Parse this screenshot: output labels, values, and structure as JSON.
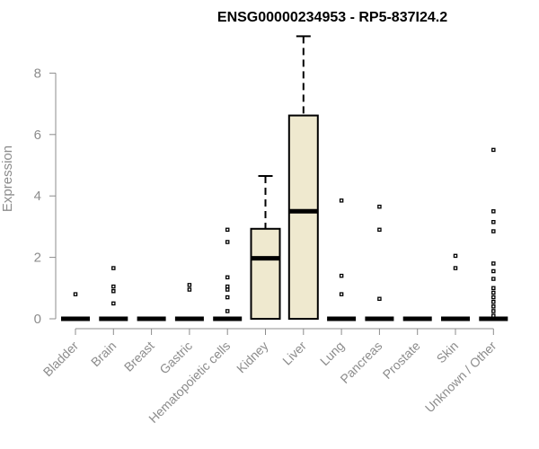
{
  "chart_data": {
    "type": "boxplot",
    "title": "ENSG00000234953 - RP5-837I24.2",
    "ylabel": "Expression",
    "xlabel": "",
    "ylim": [
      0,
      9.3
    ],
    "yticks": [
      0,
      2,
      4,
      6,
      8
    ],
    "box_fill": "#efe9cf",
    "categories": [
      "Bladder",
      "Brain",
      "Breast",
      "Gastric",
      "Hematopoietic cells",
      "Kidney",
      "Liver",
      "Lung",
      "Pancreas",
      "Prostate",
      "Skin",
      "Unknown / Other"
    ],
    "boxes": [
      {
        "q1": 0,
        "median": 0,
        "q3": 0,
        "whisker_low": 0,
        "whisker_high": 0,
        "outliers": [
          0.8
        ]
      },
      {
        "q1": 0,
        "median": 0,
        "q3": 0,
        "whisker_low": 0,
        "whisker_high": 0,
        "outliers": [
          1.65,
          1.05,
          0.9,
          0.5
        ]
      },
      {
        "q1": 0,
        "median": 0,
        "q3": 0,
        "whisker_low": 0,
        "whisker_high": 0,
        "outliers": []
      },
      {
        "q1": 0,
        "median": 0,
        "q3": 0,
        "whisker_low": 0,
        "whisker_high": 0,
        "outliers": [
          1.1,
          0.95
        ]
      },
      {
        "q1": 0,
        "median": 0,
        "q3": 0,
        "whisker_low": 0,
        "whisker_high": 0,
        "outliers": [
          2.9,
          2.5,
          1.35,
          1.05,
          0.95,
          0.7,
          0.25
        ]
      },
      {
        "q1": 0,
        "median": 1.97,
        "q3": 2.93,
        "whisker_low": 0,
        "whisker_high": 4.65,
        "outliers": []
      },
      {
        "q1": 0,
        "median": 3.5,
        "q3": 6.62,
        "whisker_low": 0,
        "whisker_high": 9.2,
        "outliers": []
      },
      {
        "q1": 0,
        "median": 0,
        "q3": 0,
        "whisker_low": 0,
        "whisker_high": 0,
        "outliers": [
          3.85,
          1.4,
          0.8
        ]
      },
      {
        "q1": 0,
        "median": 0,
        "q3": 0,
        "whisker_low": 0,
        "whisker_high": 0,
        "outliers": [
          3.65,
          2.9,
          0.65
        ]
      },
      {
        "q1": 0,
        "median": 0,
        "q3": 0,
        "whisker_low": 0,
        "whisker_high": 0,
        "outliers": []
      },
      {
        "q1": 0,
        "median": 0,
        "q3": 0,
        "whisker_low": 0,
        "whisker_high": 0,
        "outliers": [
          2.05,
          1.65
        ]
      },
      {
        "q1": 0,
        "median": 0,
        "q3": 0,
        "whisker_low": 0,
        "whisker_high": 0,
        "outliers": [
          5.5,
          3.5,
          3.15,
          2.85,
          1.8,
          1.55,
          1.3,
          1.0,
          0.85,
          0.7,
          0.55,
          0.4,
          0.25,
          0.1
        ]
      }
    ]
  }
}
